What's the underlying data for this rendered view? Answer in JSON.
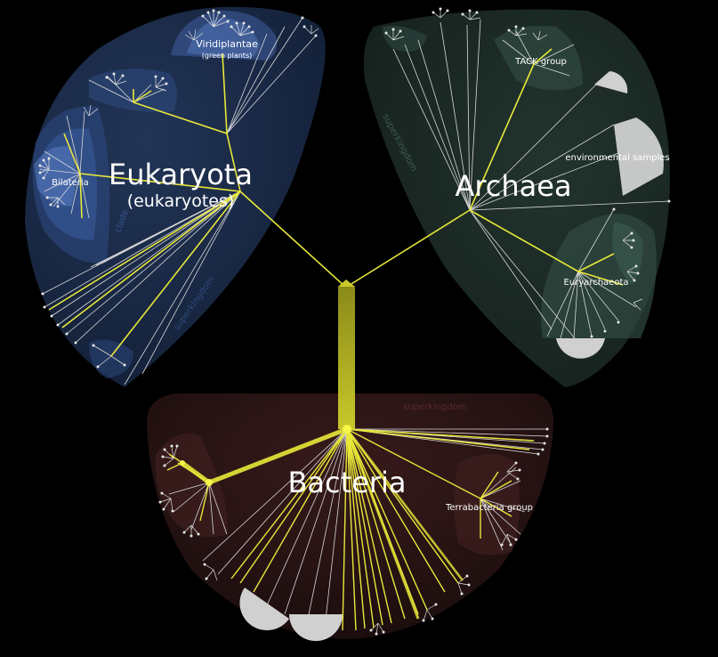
{
  "superkingdoms": {
    "eukaryota": {
      "name": "Eukaryota",
      "common": "(eukaryotes)",
      "rank": "superkingdom"
    },
    "archaea": {
      "name": "Archaea",
      "rank": "superkingdom"
    },
    "bacteria": {
      "name": "Bacteria",
      "rank": "superkingdom"
    }
  },
  "clades": {
    "viridiplantae": {
      "name": "Viridiplantae",
      "common": "(green plants)"
    },
    "bilateria": {
      "name": "Bilateria"
    },
    "clade_rank": "clade",
    "tack": {
      "name": "TACK group"
    },
    "environmental": {
      "name": "environmental samples"
    },
    "euryarchaeota": {
      "name": "Euryarchaeota"
    },
    "terrabacteria": {
      "name": "Terrabacteria group"
    }
  },
  "colors": {
    "background": "#000000",
    "eukaryota_region": "#1a2a45",
    "archaea_region": "#1b2a26",
    "bacteria_region": "#2a1414",
    "highlight_branch": "#e8e83a",
    "branch": "#d8d8d8"
  }
}
